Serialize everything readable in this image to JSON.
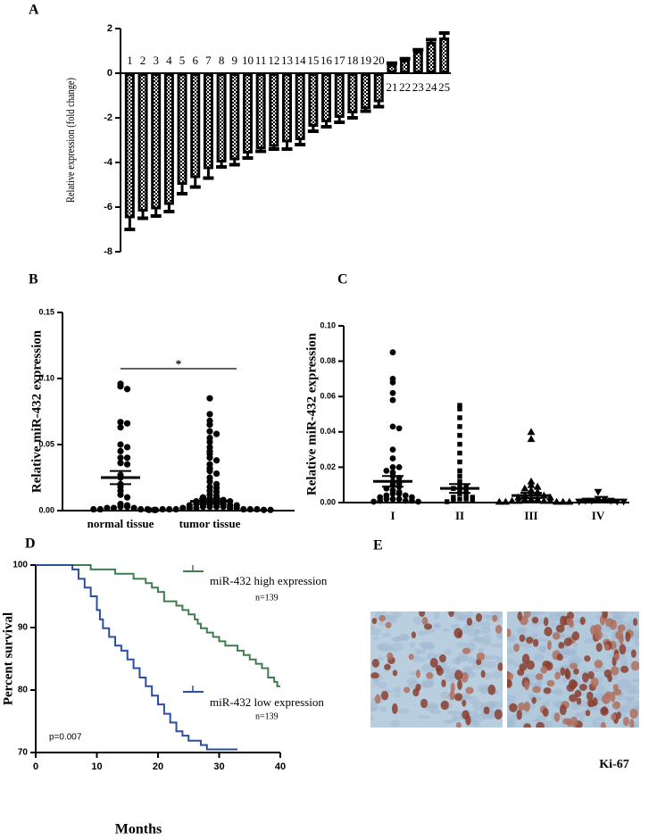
{
  "chart_data": [
    {
      "label": "A",
      "type": "bar",
      "y_label": "Relative expression (fold change)",
      "categories": [
        "1",
        "2",
        "3",
        "4",
        "5",
        "6",
        "7",
        "8",
        "9",
        "10",
        "11",
        "12",
        "13",
        "14",
        "15",
        "16",
        "17",
        "18",
        "19",
        "20",
        "21",
        "22",
        "23",
        "24",
        "25"
      ],
      "values": [
        -6.5,
        -6.2,
        -6.1,
        -5.9,
        -5.0,
        -4.7,
        -4.3,
        -4.0,
        -3.9,
        -3.6,
        -3.4,
        -3.3,
        -3.1,
        -3.0,
        -2.4,
        -2.2,
        -2.0,
        -1.8,
        -1.6,
        -1.3,
        0.4,
        0.6,
        1.0,
        1.4,
        1.6
      ],
      "errors": [
        0.5,
        0.3,
        0.3,
        0.3,
        0.4,
        0.4,
        0.4,
        0.2,
        0.2,
        0.2,
        0.1,
        0.1,
        0.3,
        0.2,
        0.2,
        0.2,
        0.2,
        0.2,
        0.1,
        0.2,
        0.05,
        0.05,
        0.05,
        0.1,
        0.2
      ],
      "color": "#000000",
      "ylim": [
        -8,
        2
      ],
      "yticks": [
        -8,
        -6,
        -4,
        -2,
        0,
        2
      ]
    },
    {
      "label": "B",
      "type": "strip",
      "y_label": "Relative miR-432 expression",
      "categories": [
        "normal tissue",
        "tumor tissue"
      ],
      "points": [
        [
          0.096,
          0.094,
          0.092,
          0.067,
          0.066,
          0.063,
          0.05,
          0.048,
          0.045,
          0.04,
          0.04,
          0.036,
          0.035,
          0.027,
          0.025,
          0.02,
          0.018,
          0.015,
          0.012,
          0.01,
          0.005,
          0.004,
          0.003,
          0.003,
          0.002,
          0.002,
          0.002,
          0.001,
          0.001,
          0.001,
          0.001,
          0.0005
        ],
        [
          0.085,
          0.073,
          0.068,
          0.065,
          0.06,
          0.058,
          0.055,
          0.052,
          0.048,
          0.045,
          0.043,
          0.04,
          0.038,
          0.035,
          0.032,
          0.03,
          0.028,
          0.025,
          0.022,
          0.02,
          0.018,
          0.017,
          0.015,
          0.014,
          0.012,
          0.011,
          0.01,
          0.009,
          0.009,
          0.008,
          0.008,
          0.007,
          0.007,
          0.006,
          0.006,
          0.005,
          0.005,
          0.005,
          0.004,
          0.004,
          0.004,
          0.003,
          0.003,
          0.003,
          0.003,
          0.002,
          0.002,
          0.002,
          0.002,
          0.002,
          0.001,
          0.001,
          0.001,
          0.001,
          0.001,
          0.001,
          0.0005,
          0.0005,
          0.0005,
          0.0005
        ]
      ],
      "means": [
        0.025,
        0.007
      ],
      "sems": [
        0.005,
        0.002
      ],
      "markers": [
        "circle",
        "circle"
      ],
      "ylim": [
        0,
        0.15
      ],
      "yticks": [
        {
          "value": 0,
          "label": "0.00"
        },
        0.05,
        {
          "value": 0.1,
          "label": "0.10"
        },
        0.15
      ],
      "significance": "*"
    },
    {
      "label": "C",
      "type": "strip",
      "y_label": "Relative miR-432 expression",
      "categories": [
        "I",
        "II",
        "III",
        "IV"
      ],
      "points": [
        [
          0.085,
          0.07,
          0.068,
          0.062,
          0.058,
          0.043,
          0.042,
          0.03,
          0.025,
          0.02,
          0.02,
          0.018,
          0.017,
          0.015,
          0.014,
          0.012,
          0.011,
          0.01,
          0.009,
          0.008,
          0.007,
          0.006,
          0.005,
          0.005,
          0.004,
          0.004,
          0.003,
          0.003,
          0.002,
          0.002,
          0.002,
          0.001,
          0.001,
          0.001,
          0.0005,
          0.0005
        ],
        [
          0.055,
          0.053,
          0.048,
          0.043,
          0.038,
          0.033,
          0.028,
          0.023,
          0.018,
          0.015,
          0.012,
          0.01,
          0.009,
          0.008,
          0.007,
          0.006,
          0.005,
          0.004,
          0.003,
          0.003,
          0.002,
          0.002,
          0.001,
          0.001,
          0.0005
        ],
        [
          0.04,
          0.036,
          0.012,
          0.01,
          0.009,
          0.008,
          0.007,
          0.006,
          0.005,
          0.005,
          0.004,
          0.004,
          0.003,
          0.003,
          0.002,
          0.002,
          0.002,
          0.001,
          0.001,
          0.001,
          0.001,
          0.0005,
          0.0005,
          0.0005,
          0.0005,
          0.0005
        ],
        [
          0.006,
          0.002,
          0.002,
          0.001,
          0.001,
          0.001,
          0.0005,
          0.0005,
          0.0005
        ]
      ],
      "means": [
        0.012,
        0.008,
        0.004,
        0.001
      ],
      "sems": [
        0.003,
        0.0025,
        0.0015,
        0.0005
      ],
      "markers": [
        "circle",
        "square",
        "triangle",
        "triangle-down"
      ],
      "ylim": [
        0,
        0.1
      ],
      "yticks": [
        {
          "value": 0,
          "label": "0.00"
        },
        0.02,
        0.04,
        0.06,
        0.08,
        {
          "value": 0.1,
          "label": "0.10"
        }
      ]
    },
    {
      "label": "D",
      "type": "step",
      "x_label": "Months",
      "y_label": "Percent survival",
      "series": [
        {
          "name": "miR-432 high expression",
          "color": "#3f7d4f",
          "n_label": "n=139",
          "x": [
            0,
            9,
            13,
            16,
            18,
            19,
            20,
            21,
            23,
            24,
            25,
            26,
            26.5,
            27,
            28,
            29,
            30,
            31,
            33,
            34,
            35,
            36,
            37,
            38,
            39,
            39.5,
            40
          ],
          "values": [
            100,
            99.3,
            98.6,
            97.8,
            97.1,
            96.4,
            95.7,
            94.2,
            93.5,
            92.8,
            92.1,
            91.3,
            90.6,
            89.9,
            89.2,
            88.5,
            87.8,
            87.1,
            86.3,
            85.6,
            84.9,
            84.2,
            83.5,
            82,
            81.3,
            80.6,
            80.6
          ]
        },
        {
          "name": "miR-432 low expression",
          "color": "#2a4fa0",
          "n_label": "n=139",
          "x": [
            0,
            6,
            7,
            8,
            9,
            10,
            10.5,
            11,
            12,
            13,
            14,
            15,
            16,
            17,
            18,
            19,
            20,
            21,
            22,
            23,
            24,
            25,
            27,
            28,
            33
          ],
          "values": [
            100,
            99.3,
            97.8,
            96.4,
            95,
            92.8,
            91.3,
            89.9,
            88.5,
            87.1,
            86.3,
            84.9,
            83.5,
            82,
            80.6,
            79.1,
            77.7,
            76.2,
            74.8,
            73.4,
            72.7,
            71.9,
            71.2,
            70.5,
            70.5
          ]
        }
      ],
      "annotation": "p=0.007",
      "xlim": [
        0,
        40
      ],
      "xticks": [
        0,
        10,
        20,
        30,
        40
      ],
      "ylim": [
        70,
        100
      ],
      "yticks": [
        70,
        80,
        90,
        100
      ]
    }
  ],
  "image_panel": {
    "label": "E",
    "caption": "Ki-67"
  }
}
